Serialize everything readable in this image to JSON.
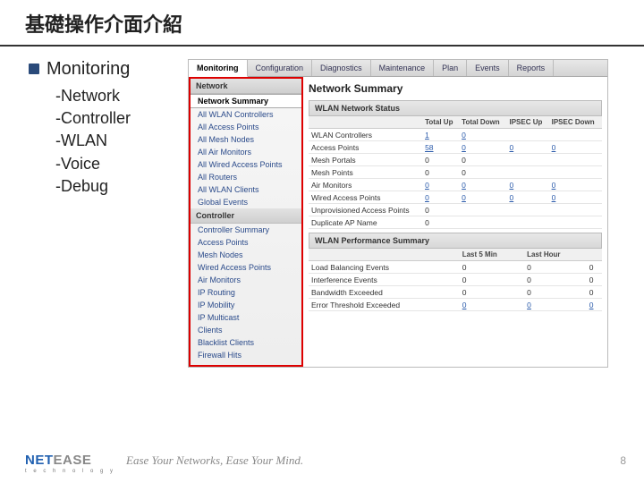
{
  "slide": {
    "title": "基礎操作介面介紹",
    "bullet": "Monitoring",
    "subitems": [
      "-Network",
      "-Controller",
      "-WLAN",
      "-Voice",
      "-Debug"
    ],
    "page_number": "8"
  },
  "brand": {
    "part1": "NET",
    "part2": "EASE",
    "sub": "t e c h n o l o g y"
  },
  "tagline": "Ease Your Networks, Ease Your Mind.",
  "ui": {
    "tabs": [
      "Monitoring",
      "Configuration",
      "Diagnostics",
      "Maintenance",
      "Plan",
      "Events",
      "Reports"
    ],
    "active_tab": 0,
    "sidebar": {
      "sections": [
        {
          "title": "Network",
          "items": [
            "Network Summary",
            "All WLAN Controllers",
            "All Access Points",
            "All Mesh Nodes",
            "All Air Monitors",
            "All Wired Access Points",
            "All Routers",
            "All WLAN Clients",
            "Global Events"
          ],
          "selected": 0
        },
        {
          "title": "Controller",
          "items": [
            "Controller Summary",
            "Access Points",
            "Mesh Nodes",
            "Wired Access Points",
            "Air Monitors",
            "IP Routing",
            "IP Mobility",
            "IP Multicast",
            "Clients",
            "Blacklist Clients",
            "Firewall Hits"
          ],
          "selected": -1
        }
      ]
    },
    "main": {
      "title": "Network Summary",
      "status_section": {
        "title": "WLAN Network Status",
        "columns": [
          "",
          "Total Up",
          "Total Down",
          "IPSEC Up",
          "IPSEC Down"
        ],
        "rows": [
          [
            "WLAN Controllers",
            "1",
            "0",
            "",
            ""
          ],
          [
            "Access Points",
            "58",
            "0",
            "0",
            "0"
          ],
          [
            "Mesh Portals",
            "0",
            "0",
            "",
            ""
          ],
          [
            "Mesh Points",
            "0",
            "0",
            "",
            ""
          ],
          [
            "Air Monitors",
            "0",
            "0",
            "0",
            "0"
          ],
          [
            "Wired Access Points",
            "0",
            "0",
            "0",
            "0"
          ],
          [
            "Unprovisioned Access Points",
            "0",
            "",
            "",
            ""
          ],
          [
            "Duplicate AP Name",
            "0",
            "",
            "",
            ""
          ]
        ],
        "link_rows": [
          0,
          1,
          4,
          5
        ]
      },
      "perf_section": {
        "title": "WLAN Performance Summary",
        "columns": [
          "",
          "Last 5 Min",
          "Last Hour",
          ""
        ],
        "rows": [
          [
            "Load Balancing Events",
            "0",
            "0",
            "0"
          ],
          [
            "Interference Events",
            "0",
            "0",
            "0"
          ],
          [
            "Bandwidth Exceeded",
            "0",
            "0",
            "0"
          ],
          [
            "Error Threshold Exceeded",
            "0",
            "0",
            "0"
          ]
        ],
        "link_rows": [
          3
        ]
      }
    }
  },
  "colors": {
    "accent": "#2a4a7a",
    "redbox": "#d00",
    "link": "#2a5aaa"
  }
}
